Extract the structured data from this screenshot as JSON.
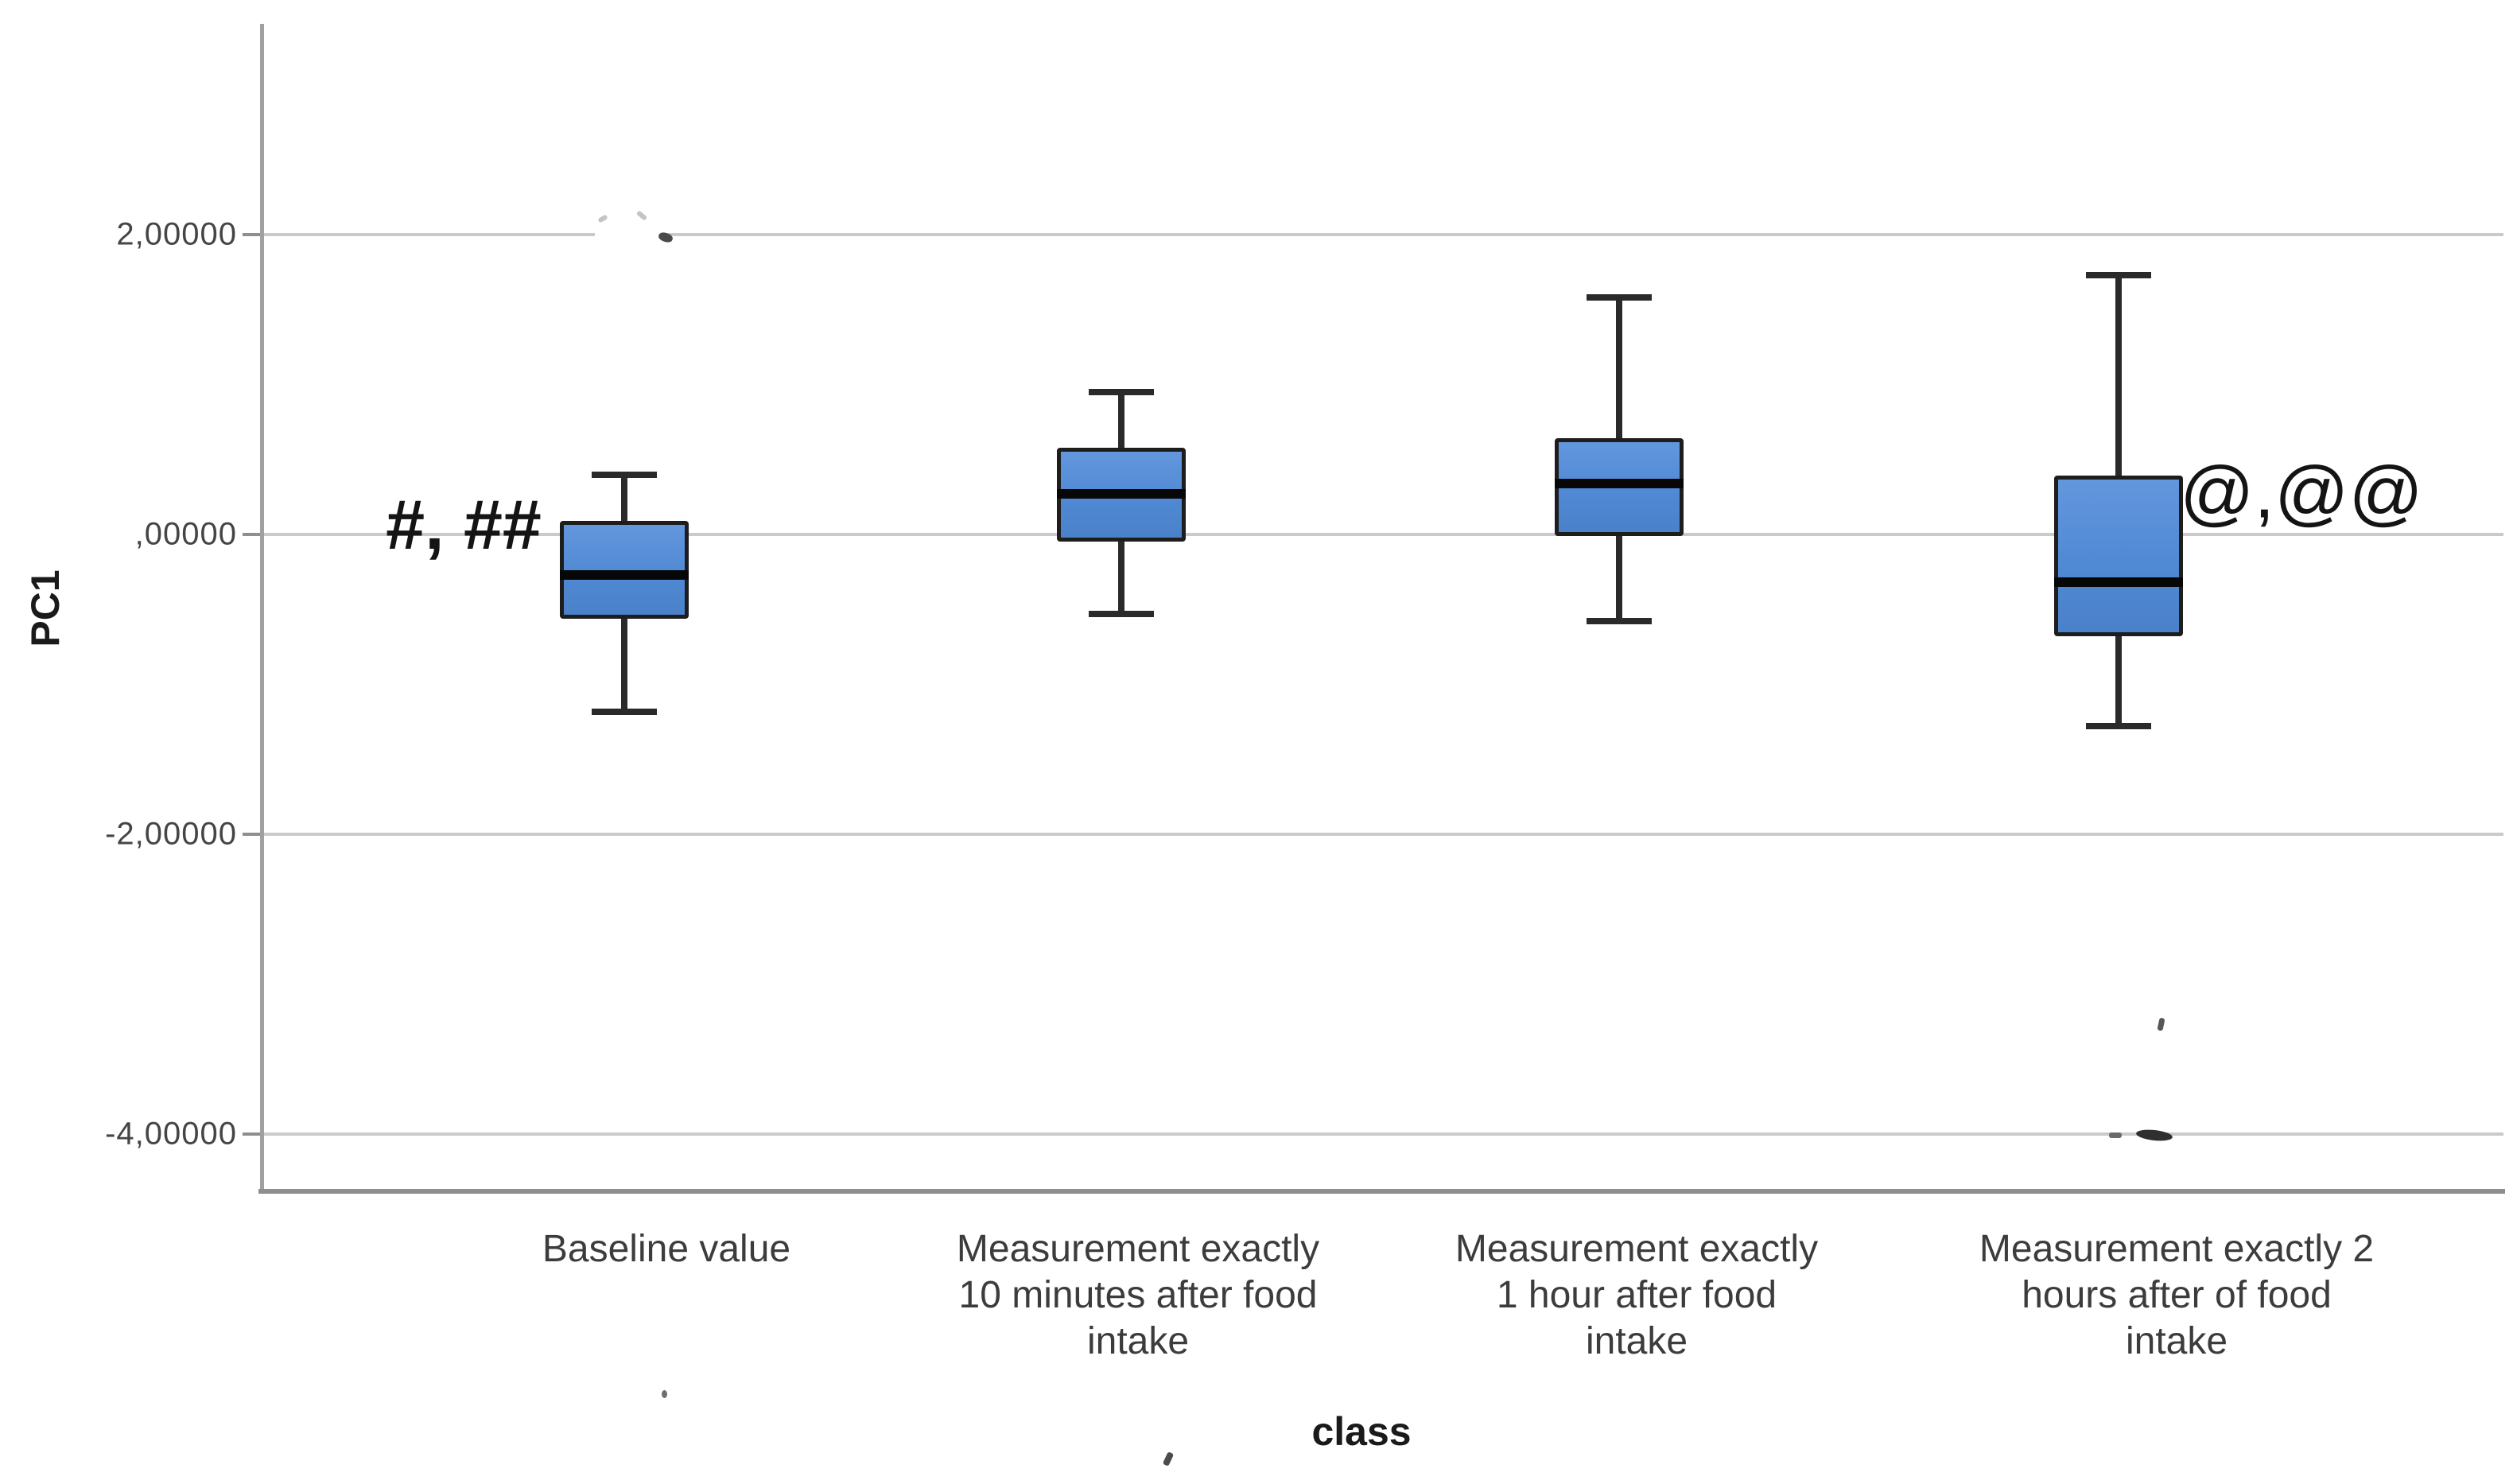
{
  "chart_data": {
    "type": "boxplot",
    "title": "",
    "xlabel": "class",
    "ylabel": "PC1",
    "y_tick_labels": [
      "2,00000",
      ",00000",
      "-2,00000",
      "-4,00000"
    ],
    "y_tick_values": [
      2,
      0,
      -2,
      -4
    ],
    "ylim": [
      -4.4,
      3.4
    ],
    "grid": "horizontal",
    "legend": "none",
    "box_fill_color": "#5089d4",
    "box_border_color": "#1d1d1d",
    "categories": [
      {
        "label_lines": [
          "Baseline value"
        ],
        "annotation": "#, ##",
        "annotation_side": "left",
        "whisker_low": -1.18,
        "q1": -0.56,
        "median": -0.27,
        "q3": 0.09,
        "whisker_high": 0.4
      },
      {
        "label_lines": [
          "Measurement exactly",
          "10 minutes after food",
          "intake"
        ],
        "annotation": "",
        "annotation_side": "",
        "whisker_low": -0.53,
        "q1": -0.05,
        "median": 0.27,
        "q3": 0.58,
        "whisker_high": 0.95
      },
      {
        "label_lines": [
          "Measurement  exactly",
          "1 hour after  food",
          "intake"
        ],
        "annotation": "",
        "annotation_side": "",
        "whisker_low": -0.58,
        "q1": -0.01,
        "median": 0.34,
        "q3": 0.64,
        "whisker_high": 1.58
      },
      {
        "label_lines": [
          "Measurement exactly 2",
          "hours after of food",
          "intake"
        ],
        "annotation": "@,@@",
        "annotation_side": "right",
        "whisker_low": -1.28,
        "q1": -0.68,
        "median": -0.32,
        "q3": 0.39,
        "whisker_high": 1.73
      }
    ]
  }
}
